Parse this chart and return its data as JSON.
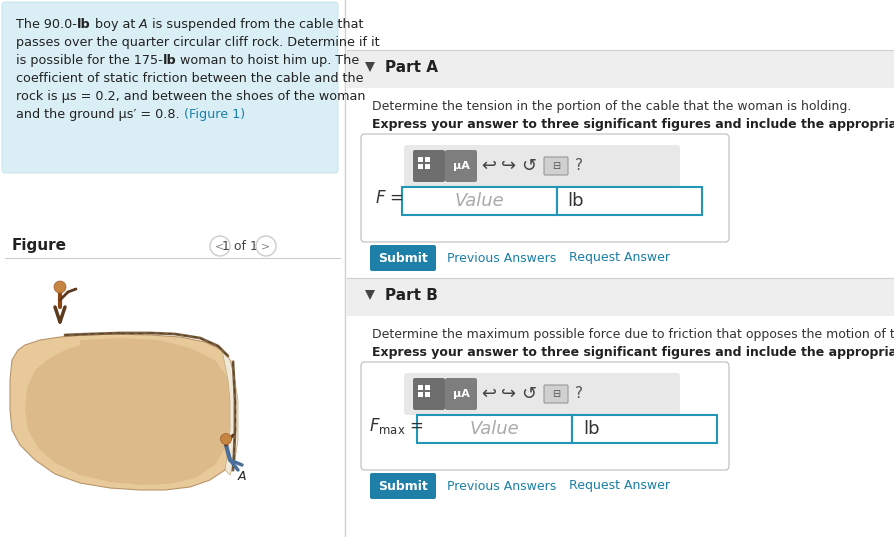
{
  "bg_color": "#ffffff",
  "left_bg_color": "#daeef5",
  "submit_color": "#1e7fa8",
  "link_color": "#1a7fa8",
  "input_border_color": "#2196b8",
  "header_bg": "#eeeeee",
  "divider_color": "#cccccc",
  "part_a_q": "Determine the tension in the portion of the cable that the woman is holding.",
  "part_a_bold": "Express your answer to three significant figures and include the appropriate units.",
  "part_b_q": "Determine the maximum possible force due to friction that opposes the motion of the woman.",
  "part_b_bold": "Express your answer to three significant figures and include the appropriate units."
}
